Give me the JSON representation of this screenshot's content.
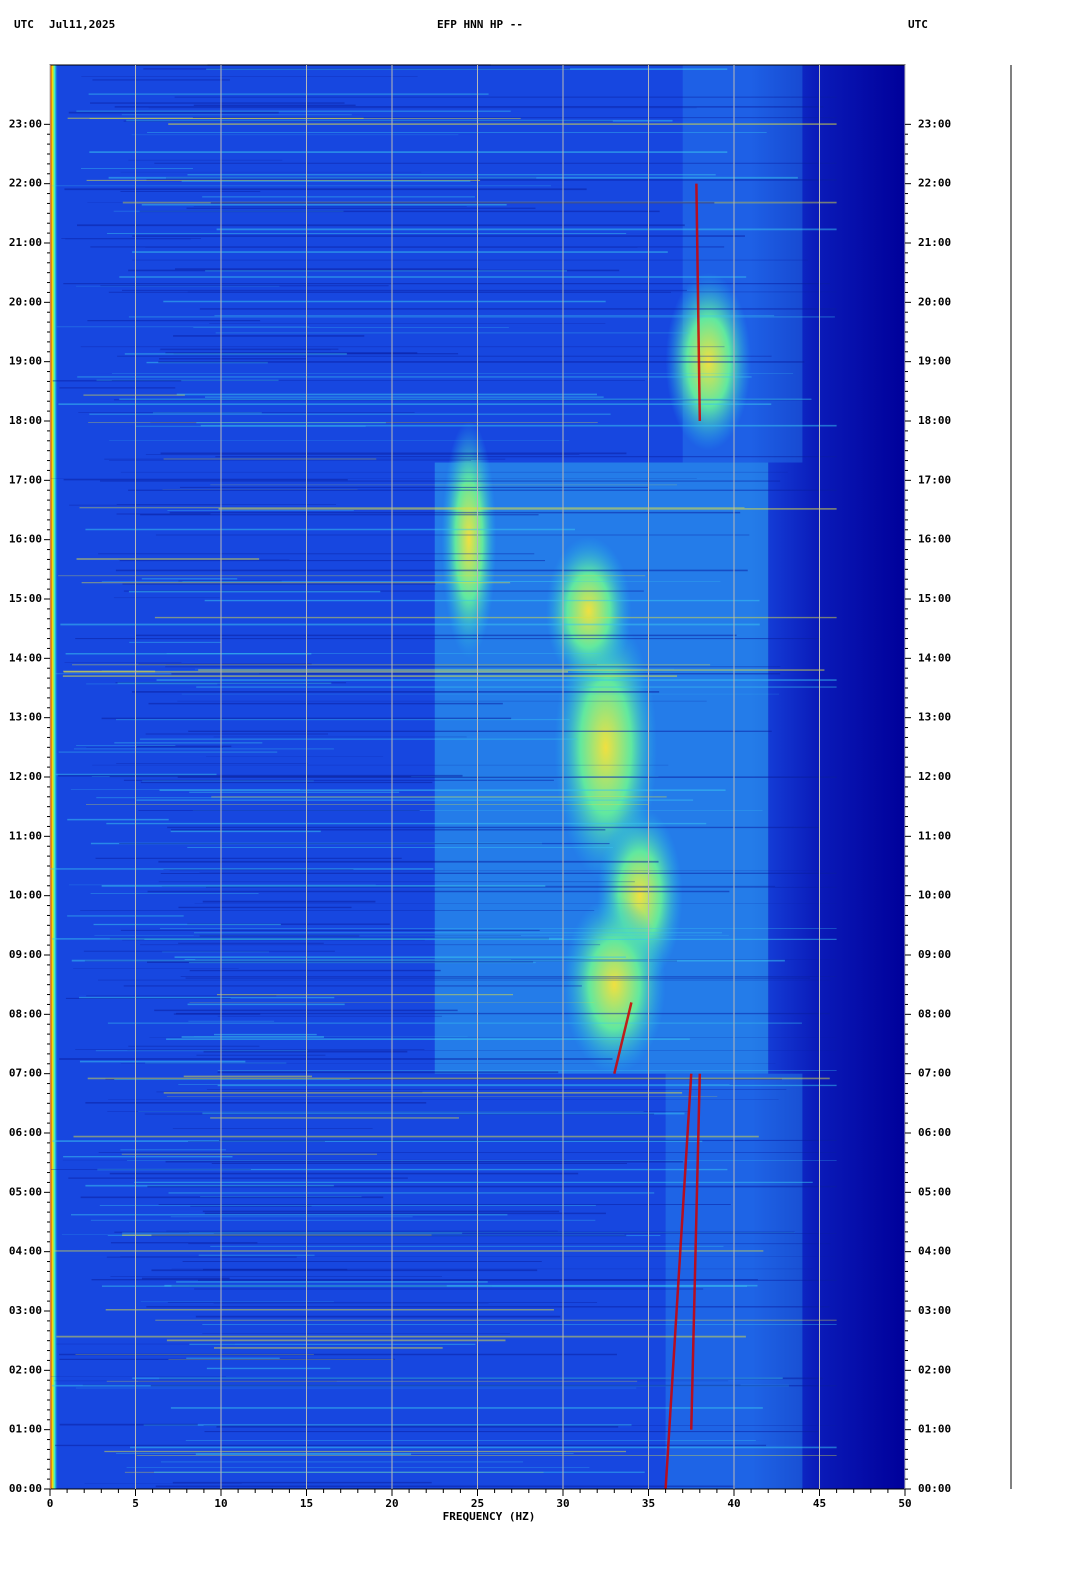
{
  "chart_data": {
    "type": "spectrogram",
    "title": "EFP HNN HP --",
    "time_zone_left": "UTC",
    "date": "Jul11,2025",
    "time_zone_right": "UTC",
    "x_label": "FREQUENCY (HZ)",
    "xlim": [
      0,
      50
    ],
    "xticks": [
      0,
      5,
      10,
      15,
      20,
      25,
      30,
      35,
      40,
      45,
      50
    ],
    "ylim": [
      0,
      24
    ],
    "yticks": [
      {
        "value": 0,
        "label": "00:00"
      },
      {
        "value": 1,
        "label": "01:00"
      },
      {
        "value": 2,
        "label": "02:00"
      },
      {
        "value": 3,
        "label": "03:00"
      },
      {
        "value": 4,
        "label": "04:00"
      },
      {
        "value": 5,
        "label": "05:00"
      },
      {
        "value": 6,
        "label": "06:00"
      },
      {
        "value": 7,
        "label": "07:00"
      },
      {
        "value": 8,
        "label": "08:00"
      },
      {
        "value": 9,
        "label": "09:00"
      },
      {
        "value": 10,
        "label": "10:00"
      },
      {
        "value": 11,
        "label": "11:00"
      },
      {
        "value": 12,
        "label": "12:00"
      },
      {
        "value": 13,
        "label": "13:00"
      },
      {
        "value": 14,
        "label": "14:00"
      },
      {
        "value": 15,
        "label": "15:00"
      },
      {
        "value": 16,
        "label": "16:00"
      },
      {
        "value": 17,
        "label": "17:00"
      },
      {
        "value": 18,
        "label": "18:00"
      },
      {
        "value": 19,
        "label": "19:00"
      },
      {
        "value": 20,
        "label": "20:00"
      },
      {
        "value": 21,
        "label": "21:00"
      },
      {
        "value": 22,
        "label": "22:00"
      },
      {
        "value": 23,
        "label": "23:00"
      }
    ],
    "grid": true
  }
}
